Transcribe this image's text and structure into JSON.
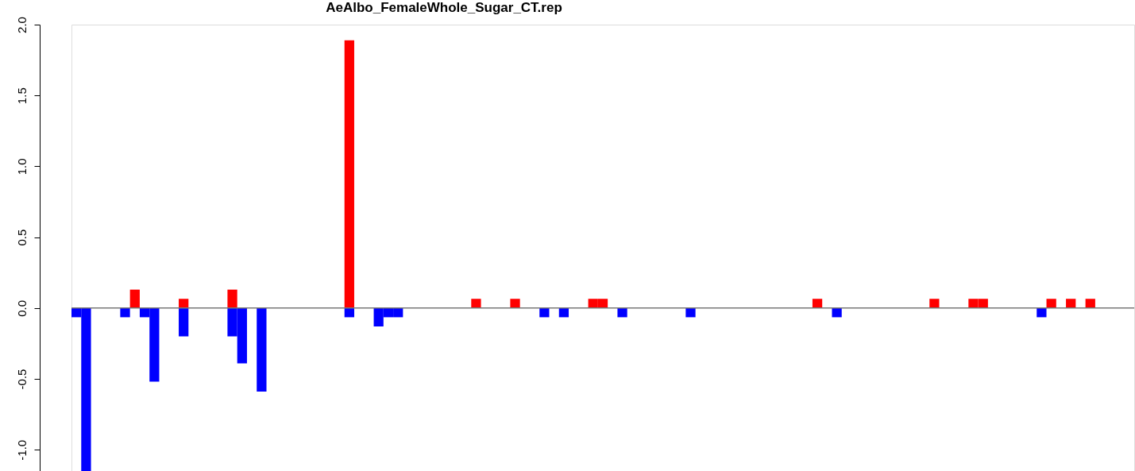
{
  "chart_data": {
    "type": "bar",
    "title": "AeAlbo_FemaleWhole_Sugar_CT.rep",
    "categories": [
      null,
      null,
      null,
      null,
      null,
      null,
      null,
      null,
      null,
      null,
      null,
      null,
      null,
      null,
      null,
      null,
      null,
      null,
      null,
      null,
      null,
      null,
      null,
      null,
      null,
      null,
      null,
      null,
      null,
      null,
      null,
      null,
      null,
      null,
      null,
      null,
      null,
      null,
      null,
      null,
      null,
      null,
      null,
      null,
      null,
      null,
      null,
      null,
      null,
      null,
      null,
      null,
      null,
      null,
      null,
      null,
      null,
      null,
      null,
      null,
      null,
      null,
      null,
      null,
      null,
      null,
      null,
      null,
      null,
      null,
      null,
      null,
      null,
      null,
      null,
      null,
      null,
      null,
      null,
      null,
      null,
      null,
      null,
      null,
      null,
      null,
      null,
      null,
      null,
      null,
      null,
      null,
      null,
      null,
      null,
      null,
      null,
      null,
      null,
      null,
      null,
      null,
      null,
      null,
      null,
      null,
      null,
      null,
      null
    ],
    "series": [
      {
        "color": "#ff0000",
        "values": [
          0,
          0,
          0,
          0,
          0,
          0,
          0.13,
          0,
          0,
          0,
          0,
          0.065,
          0,
          0,
          0,
          0,
          0.13,
          0,
          0,
          0,
          0,
          0,
          0,
          0,
          0,
          0,
          0,
          0,
          1.89,
          0,
          0,
          0,
          0,
          0,
          0,
          0,
          0,
          0,
          0,
          0,
          0,
          0.065,
          0,
          0,
          0,
          0.065,
          0,
          0,
          0,
          0,
          0,
          0,
          0,
          0.065,
          0.065,
          0,
          0,
          0,
          0,
          0,
          0,
          0,
          0,
          0,
          0,
          0,
          0,
          0,
          0,
          0,
          0,
          0,
          0,
          0,
          0,
          0,
          0.065,
          0,
          0,
          0,
          0,
          0,
          0,
          0,
          0,
          0,
          0,
          0,
          0.065,
          0,
          0,
          0,
          0.065,
          0.065,
          0,
          0,
          0,
          0,
          0,
          0,
          0.065,
          0,
          0.065,
          0,
          0.065,
          0,
          0,
          0,
          0
        ]
      },
      {
        "color": "#0000ff",
        "values": [
          -0.065,
          -1.15,
          0,
          0,
          0,
          -0.065,
          0,
          -0.065,
          -0.52,
          0,
          0,
          -0.2,
          0,
          0,
          0,
          0,
          -0.2,
          -0.39,
          0,
          -0.59,
          0,
          0,
          0,
          0,
          0,
          0,
          0,
          0,
          -0.065,
          0,
          0,
          -0.13,
          -0.065,
          -0.065,
          0,
          0,
          0,
          0,
          0,
          0,
          0,
          0,
          0,
          0,
          0,
          0,
          0,
          0,
          -0.065,
          0,
          -0.065,
          0,
          0,
          0,
          0,
          0,
          -0.065,
          0,
          0,
          0,
          0,
          0,
          0,
          -0.065,
          0,
          0,
          0,
          0,
          0,
          0,
          0,
          0,
          0,
          0,
          0,
          0,
          0,
          0,
          -0.065,
          0,
          0,
          0,
          0,
          0,
          0,
          0,
          0,
          0,
          0,
          0,
          0,
          0,
          0,
          0,
          0,
          0,
          0,
          0,
          0,
          -0.065,
          0,
          0,
          0,
          0,
          0,
          0,
          0,
          0,
          0
        ]
      }
    ],
    "ylim": [
      -1.15,
      2.0
    ],
    "yticks": [
      {
        "value": -1,
        "label": "-1.0"
      },
      -0.5,
      {
        "value": 0,
        "label": "0.0"
      },
      0.5,
      {
        "value": 1,
        "label": "1.0"
      },
      1.5,
      {
        "value": 2,
        "label": "2.0"
      }
    ],
    "ref_lines": [
      {
        "axis": "y",
        "value": 0,
        "color": "#777777"
      }
    ],
    "grid": false,
    "legend": false,
    "tick_labels": "y"
  }
}
